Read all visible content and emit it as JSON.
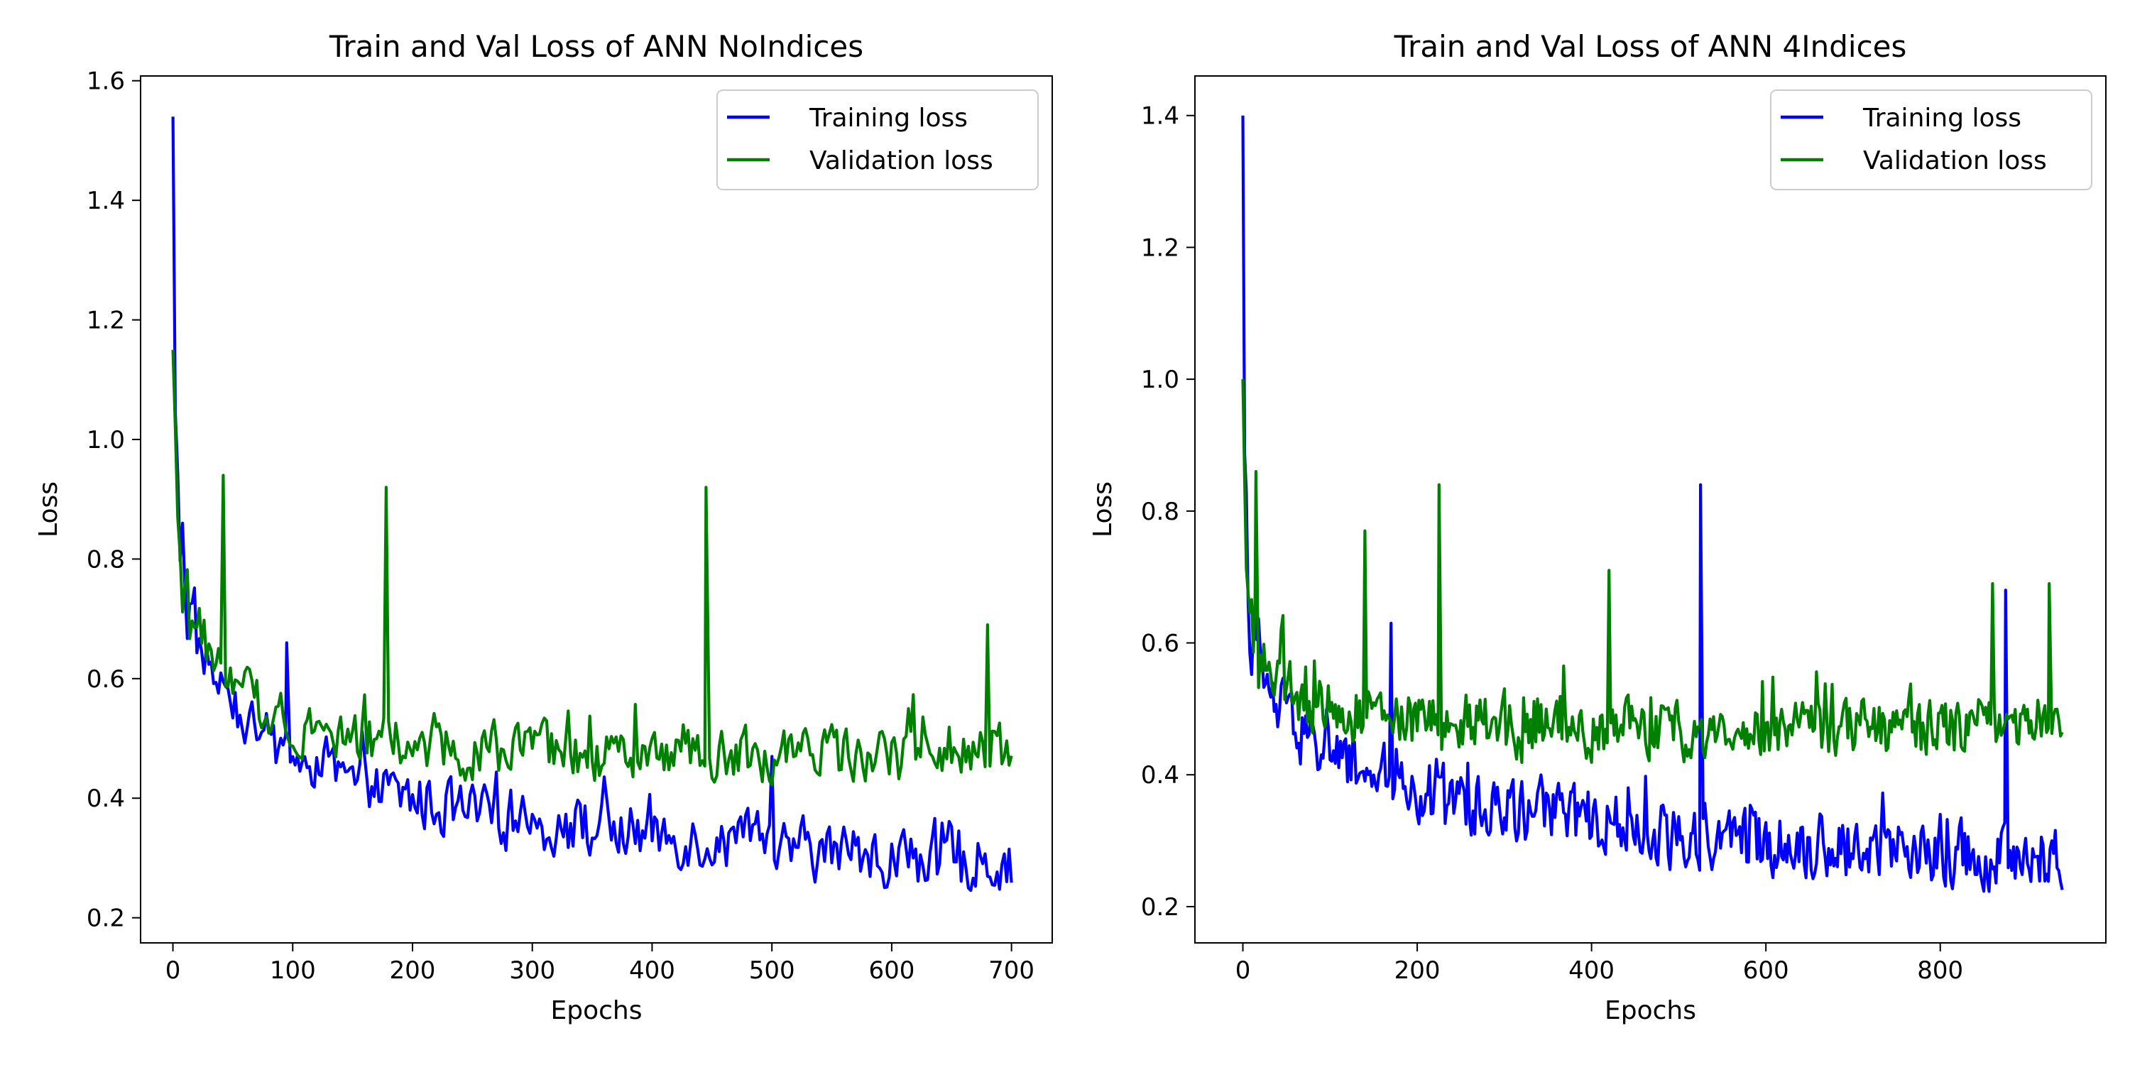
{
  "chart_data": [
    {
      "type": "line",
      "title": "Train and Val Loss of ANN NoIndices",
      "xlabel": "Epochs",
      "ylabel": "Loss",
      "xlim": [
        -27,
        734
      ],
      "ylim": [
        0.158,
        1.608
      ],
      "xticks": [
        0,
        100,
        200,
        300,
        400,
        500,
        600,
        700
      ],
      "yticks": [
        0.2,
        0.4,
        0.6,
        0.8,
        1.0,
        1.2,
        1.4,
        1.6
      ],
      "ytick_labels": [
        "0.2",
        "0.4",
        "0.6",
        "0.8",
        "1.0",
        "1.2",
        "1.4",
        "1.6"
      ],
      "grid": false,
      "legend": "top-right",
      "series": [
        {
          "name": "Training loss",
          "color": "#0000ff",
          "x": [
            0,
            2,
            5,
            10,
            20,
            30,
            40,
            50,
            60,
            80,
            100,
            120,
            150,
            200,
            250,
            300,
            350,
            400,
            450,
            500,
            550,
            600,
            650,
            700
          ],
          "y": [
            1.54,
            1.0,
            0.83,
            0.74,
            0.66,
            0.62,
            0.58,
            0.55,
            0.53,
            0.49,
            0.47,
            0.45,
            0.42,
            0.4,
            0.37,
            0.36,
            0.35,
            0.34,
            0.33,
            0.32,
            0.31,
            0.3,
            0.3,
            0.29
          ],
          "spikes": [
            [
              8,
              0.86
            ],
            [
              95,
              0.66
            ],
            [
              500,
              0.47
            ]
          ]
        },
        {
          "name": "Validation loss",
          "color": "#008000",
          "x": [
            0,
            2,
            5,
            10,
            20,
            30,
            40,
            50,
            60,
            80,
            100,
            120,
            150,
            200,
            250,
            300,
            350,
            400,
            450,
            500,
            550,
            600,
            650,
            700
          ],
          "y": [
            1.15,
            0.95,
            0.8,
            0.74,
            0.69,
            0.65,
            0.62,
            0.59,
            0.57,
            0.55,
            0.53,
            0.52,
            0.5,
            0.49,
            0.48,
            0.48,
            0.47,
            0.47,
            0.47,
            0.47,
            0.47,
            0.47,
            0.47,
            0.48
          ],
          "spikes": [
            [
              42,
              0.94
            ],
            [
              178,
              0.92
            ],
            [
              445,
              0.92
            ],
            [
              680,
              0.69
            ]
          ]
        }
      ]
    },
    {
      "type": "line",
      "title": "Train and Val Loss of ANN 4Indices",
      "xlabel": "Epochs",
      "ylabel": "Loss",
      "xlim": [
        -55,
        990
      ],
      "ylim": [
        0.145,
        1.46
      ],
      "xticks": [
        0,
        200,
        400,
        600,
        800
      ],
      "yticks": [
        0.2,
        0.4,
        0.6,
        0.8,
        1.0,
        1.2,
        1.4
      ],
      "ytick_labels": [
        "0.2",
        "0.4",
        "0.6",
        "0.8",
        "1.0",
        "1.2",
        "1.4"
      ],
      "grid": false,
      "legend": "top-right",
      "series": [
        {
          "name": "Training loss",
          "color": "#0000ff",
          "x": [
            0,
            2,
            5,
            10,
            20,
            30,
            40,
            60,
            80,
            100,
            150,
            200,
            250,
            300,
            400,
            500,
            600,
            700,
            800,
            900,
            940
          ],
          "y": [
            1.4,
            0.9,
            0.74,
            0.62,
            0.55,
            0.52,
            0.5,
            0.47,
            0.45,
            0.43,
            0.4,
            0.38,
            0.36,
            0.35,
            0.33,
            0.31,
            0.3,
            0.29,
            0.28,
            0.27,
            0.27
          ],
          "spikes": [
            [
              170,
              0.63
            ],
            [
              525,
              0.84
            ],
            [
              875,
              0.68
            ]
          ]
        },
        {
          "name": "Validation loss",
          "color": "#008000",
          "x": [
            0,
            2,
            5,
            10,
            20,
            30,
            40,
            60,
            80,
            100,
            150,
            200,
            250,
            300,
            400,
            500,
            600,
            700,
            800,
            900,
            940
          ],
          "y": [
            1.0,
            0.85,
            0.72,
            0.64,
            0.58,
            0.56,
            0.54,
            0.52,
            0.51,
            0.5,
            0.49,
            0.48,
            0.48,
            0.47,
            0.47,
            0.47,
            0.47,
            0.47,
            0.47,
            0.48,
            0.48
          ],
          "spikes": [
            [
              15,
              0.86
            ],
            [
              140,
              0.77
            ],
            [
              225,
              0.84
            ],
            [
              420,
              0.71
            ],
            [
              860,
              0.69
            ],
            [
              925,
              0.69
            ]
          ]
        }
      ]
    }
  ]
}
